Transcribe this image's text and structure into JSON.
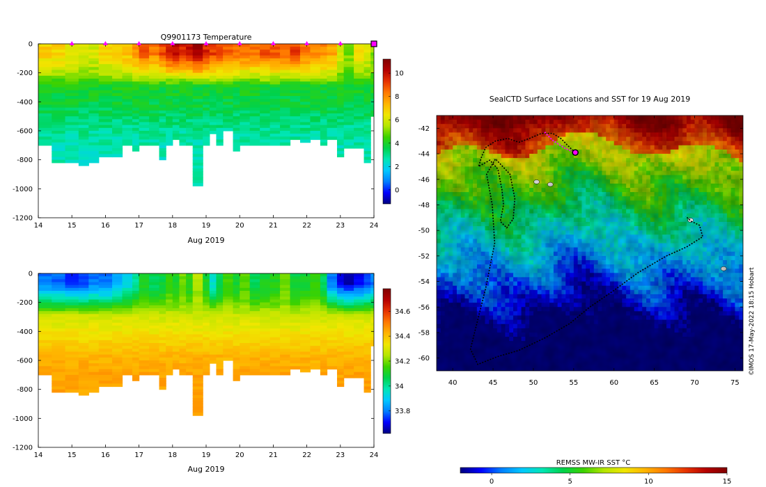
{
  "colors": {
    "jet": [
      "#00007f",
      "#0000ff",
      "#007fff",
      "#00c8ff",
      "#00e6b4",
      "#00d24b",
      "#3cd200",
      "#b4e600",
      "#f0e600",
      "#ffb400",
      "#ff7800",
      "#e63200",
      "#b40000",
      "#800000"
    ]
  },
  "credit": "IMOS 17-May-2022 18:15 Hobart",
  "chart_data": [
    {
      "id": "temperature_section",
      "type": "heatmap",
      "title": "Q9901173  Temperature",
      "xlabel": "Aug 2019",
      "ylabel": "",
      "xlim": [
        14,
        24
      ],
      "ylim": [
        -1200,
        0
      ],
      "xticks": [
        14,
        15,
        16,
        17,
        18,
        19,
        20,
        21,
        22,
        23,
        24
      ],
      "yticks": [
        0,
        -200,
        -400,
        -600,
        -800,
        -1000,
        -1200
      ],
      "colorbar": {
        "range": [
          -1.2,
          11.2
        ],
        "ticks": [
          0,
          2,
          4,
          6,
          8,
          10
        ]
      },
      "markers_x": [
        15,
        16,
        17,
        18,
        19,
        20,
        21,
        22,
        23,
        24
      ],
      "marker_color": "#ff00ff",
      "profile_dates": [
        14.0,
        14.4,
        14.8,
        15.2,
        15.5,
        15.8,
        16.2,
        16.5,
        16.8,
        17.0,
        17.3,
        17.6,
        17.8,
        18.0,
        18.2,
        18.4,
        18.6,
        18.9,
        19.1,
        19.3,
        19.5,
        19.8,
        20.0,
        20.3,
        20.6,
        20.9,
        21.2,
        21.5,
        21.8,
        22.1,
        22.4,
        22.6,
        22.9,
        23.1,
        23.4,
        23.7,
        23.9
      ],
      "profile_max_depths": [
        -700,
        -810,
        -810,
        -830,
        -810,
        -780,
        -780,
        -700,
        -730,
        -700,
        -700,
        -790,
        -700,
        -650,
        -700,
        -700,
        -980,
        -700,
        -610,
        -700,
        -600,
        -730,
        -690,
        -700,
        -700,
        -700,
        -690,
        -660,
        -680,
        -650,
        -700,
        -650,
        -780,
        -720,
        -720,
        -820,
        -500
      ],
      "surface_values": [
        7.0,
        6.8,
        6.5,
        6.2,
        6.0,
        6.6,
        6.8,
        7.2,
        8.0,
        8.8,
        8.2,
        9.0,
        9.8,
        10.0,
        9.6,
        9.8,
        10.5,
        9.5,
        9.2,
        9.0,
        8.6,
        8.5,
        8.5,
        8.3,
        8.8,
        8.8,
        8.6,
        9.1,
        8.4,
        8.2,
        8.0,
        7.6,
        6.0,
        5.0,
        6.5,
        6.0,
        5.2
      ],
      "depth_values": [
        5.0,
        5.0,
        4.0,
        3.6,
        3.0,
        2.6
      ]
    },
    {
      "id": "salinity_section",
      "type": "heatmap",
      "title": "",
      "xlabel": "Aug 2019",
      "ylabel": "",
      "xlim": [
        14,
        24
      ],
      "ylim": [
        -1200,
        0
      ],
      "xticks": [
        14,
        15,
        16,
        17,
        18,
        19,
        20,
        21,
        22,
        23,
        24
      ],
      "yticks": [
        0,
        -200,
        -400,
        -600,
        -800,
        -1000,
        -1200
      ],
      "colorbar": {
        "range": [
          33.62,
          34.78
        ],
        "ticks": [
          33.8,
          34,
          34.2,
          34.4,
          34.6
        ]
      },
      "surface_values": [
        33.8,
        33.78,
        33.75,
        33.76,
        33.8,
        33.78,
        33.85,
        33.92,
        34.0,
        34.1,
        34.05,
        34.08,
        34.15,
        34.1,
        34.2,
        34.12,
        34.25,
        34.1,
        33.95,
        34.05,
        34.15,
        34.1,
        34.18,
        34.05,
        34.1,
        34.12,
        34.2,
        34.08,
        34.1,
        34.15,
        34.05,
        33.8,
        33.7,
        33.66,
        33.7,
        33.75,
        33.8
      ],
      "depth_values": [
        34.05,
        34.2,
        34.28,
        34.35,
        34.42,
        34.45
      ]
    },
    {
      "id": "sst_map",
      "type": "heatmap",
      "title": "SealCTD Surface Locations and SST for 19 Aug 2019",
      "xlabel": "",
      "ylabel": "",
      "xlim": [
        38,
        76
      ],
      "ylim": [
        -61,
        -41
      ],
      "xticks": [
        40,
        45,
        50,
        55,
        60,
        65,
        70,
        75
      ],
      "yticks": [
        -42,
        -44,
        -46,
        -48,
        -50,
        -52,
        -54,
        -56,
        -58,
        -60
      ],
      "colorbar": {
        "label": "REMSS MW-IR SST °C",
        "range": [
          -2,
          15
        ],
        "ticks": [
          0,
          5,
          10,
          15
        ]
      },
      "track": [
        [
          55.2,
          -43.9
        ],
        [
          54.5,
          -43.5
        ],
        [
          53.4,
          -42.8
        ],
        [
          52.4,
          -42.4
        ],
        [
          51.0,
          -42.4
        ],
        [
          49.5,
          -42.8
        ],
        [
          48.2,
          -43.1
        ],
        [
          46.8,
          -42.8
        ],
        [
          45.3,
          -43.0
        ],
        [
          44.1,
          -43.5
        ],
        [
          43.6,
          -44.2
        ],
        [
          43.2,
          -45.0
        ],
        [
          44.6,
          -44.5
        ],
        [
          45.6,
          -45.2
        ],
        [
          46.1,
          -46.8
        ],
        [
          46.3,
          -48.0
        ],
        [
          45.9,
          -49.3
        ],
        [
          46.7,
          -49.8
        ],
        [
          47.5,
          -49.1
        ],
        [
          47.7,
          -47.5
        ],
        [
          47.1,
          -45.6
        ],
        [
          45.3,
          -44.4
        ],
        [
          44.2,
          -45.6
        ],
        [
          44.9,
          -48.0
        ],
        [
          45.2,
          -51.0
        ],
        [
          44.1,
          -54.5
        ],
        [
          43.1,
          -57.0
        ],
        [
          42.2,
          -59.3
        ],
        [
          43.1,
          -60.5
        ],
        [
          45.5,
          -59.9
        ],
        [
          48.2,
          -59.4
        ],
        [
          51.5,
          -58.4
        ],
        [
          54.5,
          -57.3
        ],
        [
          57.0,
          -56.0
        ],
        [
          60.0,
          -54.7
        ],
        [
          63.0,
          -53.3
        ],
        [
          66.5,
          -52.0
        ],
        [
          69.0,
          -51.3
        ],
        [
          71.0,
          -50.5
        ],
        [
          70.6,
          -49.6
        ],
        [
          69.6,
          -49.3
        ],
        [
          68.9,
          -48.9
        ]
      ],
      "recent_track": [
        [
          51.4,
          -42.3
        ],
        [
          52.3,
          -42.9
        ],
        [
          53.0,
          -43.2
        ],
        [
          54.0,
          -43.6
        ],
        [
          55.2,
          -43.9
        ]
      ],
      "track_color": "#000000",
      "recent_color": "#ff00ff"
    }
  ]
}
